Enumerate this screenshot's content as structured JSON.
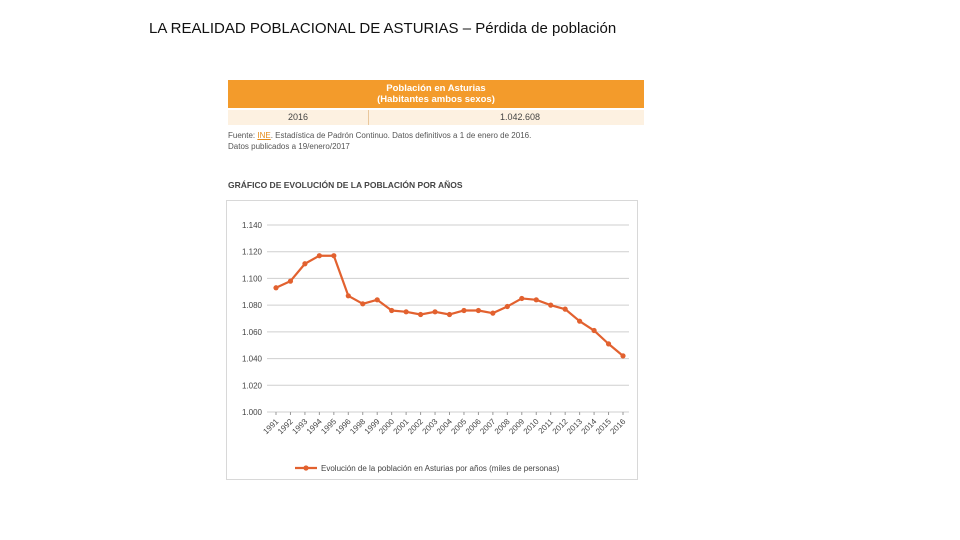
{
  "slide": {
    "title": "LA REALIDAD POBLACIONAL DE ASTURIAS – Pérdida de población"
  },
  "table": {
    "header_line1": "Población en Asturias",
    "header_line2": "(Habitantes ambos sexos)",
    "row_year": "2016",
    "row_value": "1.042.608",
    "source_prefix": "Fuente: ",
    "source_link": "INE",
    "source_rest": ". Estadística de Padrón Continuo. Datos definitivos a 1 de enero de 2016.",
    "published": "Datos publicados a 19/enero/2017"
  },
  "colors": {
    "header_bg": "#f39b2b",
    "series": "#e2612f"
  },
  "chart_data": {
    "type": "line",
    "title": "GRÁFICO DE EVOLUCIÓN DE LA POBLACIÓN POR AÑOS",
    "categories": [
      "1991",
      "1992",
      "1993",
      "1994",
      "1995",
      "1996",
      "1998",
      "1999",
      "2000",
      "2001",
      "2002",
      "2003",
      "2004",
      "2005",
      "2006",
      "2007",
      "2008",
      "2009",
      "2010",
      "2011",
      "2012",
      "2013",
      "2014",
      "2015",
      "2016"
    ],
    "series": [
      {
        "name": "Evolución de la población en Asturias por años (miles de personas)",
        "values": [
          1093,
          1098,
          1111,
          1117,
          1117,
          1087,
          1081,
          1084,
          1076,
          1075,
          1073,
          1075,
          1073,
          1076,
          1076,
          1074,
          1079,
          1085,
          1084,
          1080,
          1077,
          1068,
          1061,
          1051,
          1042
        ]
      }
    ],
    "ylim": [
      1000,
      1140
    ],
    "y_ticks": [
      "1.000",
      "1.020",
      "1.040",
      "1.060",
      "1.080",
      "1.100",
      "1.120",
      "1.140"
    ],
    "grid": true,
    "legend_position": "bottom"
  }
}
